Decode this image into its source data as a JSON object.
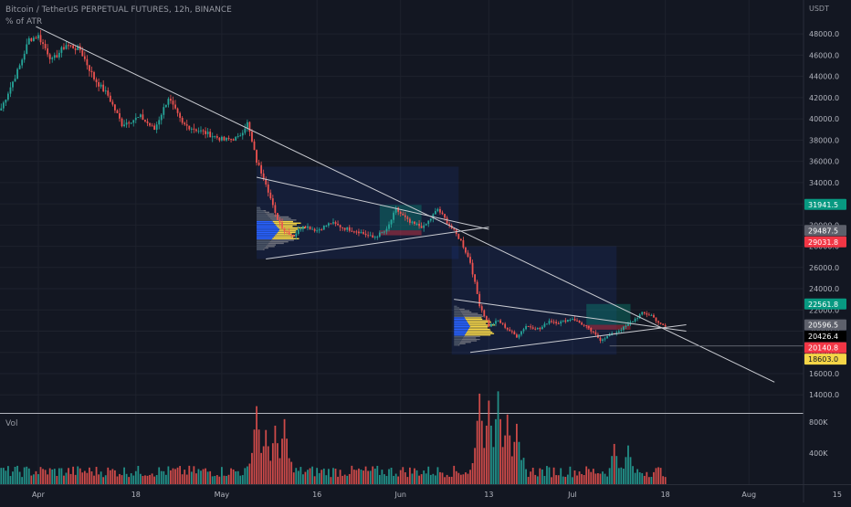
{
  "header": {
    "title": "Bitcoin / TetherUS PERPETUAL FUTURES, 12h, BINANCE",
    "indicator": "% of ATR",
    "currency": "USDT",
    "volume_label": "Vol"
  },
  "colors": {
    "background": "#131722",
    "up": "#26a69a",
    "down": "#ef5350",
    "grid": "#1e222d",
    "axis_text": "#b2b5be",
    "trendline": "#c9cbd1",
    "profile_blue": "#2962ff",
    "profile_yellow": "#f5d547"
  },
  "chart_data": {
    "type": "candlestick",
    "y_axis": {
      "min": 12300,
      "max": 51200,
      "ticks": [
        14000,
        16000,
        18000,
        20000,
        22000,
        24000,
        26000,
        28000,
        30000,
        32000,
        34000,
        36000,
        38000,
        40000,
        42000,
        44000,
        46000,
        48000
      ],
      "tick_labels": [
        "14000.0",
        "16000.0",
        "18000.0",
        "20000.0",
        "22000.0",
        "24000.0",
        "26000.0",
        "28000.0",
        "30000.0",
        "32000.0",
        "34000.0",
        "36000.0",
        "38000.0",
        "40000.0",
        "42000.0",
        "44000.0",
        "46000.0",
        "48000.0"
      ]
    },
    "x_axis": {
      "labels": [
        "Apr",
        "18",
        "May",
        "16",
        "Jun",
        "13",
        "Jul",
        "18",
        "Aug",
        "15"
      ],
      "bar_index": [
        16,
        58,
        95,
        136,
        172,
        210,
        246,
        286,
        322,
        360
      ]
    },
    "price_tags": [
      {
        "label": "31941.5",
        "value": 31941.5,
        "color": "#089981"
      },
      {
        "label": "29487.5",
        "value": 29487.5,
        "color": "#5d606b"
      },
      {
        "label": "29031.8",
        "value": 29031.8,
        "color": "#f23645"
      },
      {
        "label": "22561.8",
        "value": 22561.8,
        "color": "#089981"
      },
      {
        "label": "20596.5",
        "value": 20596.5,
        "color": "#5d606b"
      },
      {
        "label": "20426.4",
        "value": 20426.4,
        "color": "#000000"
      },
      {
        "label": "20140.8",
        "value": 20140.8,
        "color": "#f23645"
      },
      {
        "label": "18603.0",
        "value": 18603.0,
        "color": "#f5d547"
      }
    ],
    "volume_axis": {
      "ticks": [
        400000,
        800000
      ],
      "tick_labels": [
        "400K",
        "800K"
      ],
      "max": 850000
    },
    "keypoints": [
      {
        "i": 0,
        "p": 41000
      },
      {
        "i": 8,
        "p": 45000
      },
      {
        "i": 12,
        "p": 47500
      },
      {
        "i": 16,
        "p": 47800
      },
      {
        "i": 22,
        "p": 45500
      },
      {
        "i": 28,
        "p": 47000
      },
      {
        "i": 34,
        "p": 46500
      },
      {
        "i": 40,
        "p": 43800
      },
      {
        "i": 46,
        "p": 42200
      },
      {
        "i": 52,
        "p": 39500
      },
      {
        "i": 60,
        "p": 40200
      },
      {
        "i": 66,
        "p": 39000
      },
      {
        "i": 72,
        "p": 42000
      },
      {
        "i": 78,
        "p": 39500
      },
      {
        "i": 84,
        "p": 39000
      },
      {
        "i": 90,
        "p": 38500
      },
      {
        "i": 96,
        "p": 38000
      },
      {
        "i": 102,
        "p": 38200
      },
      {
        "i": 106,
        "p": 39600
      },
      {
        "i": 110,
        "p": 36000
      },
      {
        "i": 114,
        "p": 34000
      },
      {
        "i": 118,
        "p": 31000
      },
      {
        "i": 122,
        "p": 29500
      },
      {
        "i": 126,
        "p": 29000
      },
      {
        "i": 130,
        "p": 30000
      },
      {
        "i": 136,
        "p": 29500
      },
      {
        "i": 142,
        "p": 30200
      },
      {
        "i": 148,
        "p": 29700
      },
      {
        "i": 154,
        "p": 29400
      },
      {
        "i": 160,
        "p": 28800
      },
      {
        "i": 166,
        "p": 29500
      },
      {
        "i": 170,
        "p": 31500
      },
      {
        "i": 176,
        "p": 30200
      },
      {
        "i": 182,
        "p": 29800
      },
      {
        "i": 188,
        "p": 31500
      },
      {
        "i": 192,
        "p": 30300
      },
      {
        "i": 198,
        "p": 28500
      },
      {
        "i": 202,
        "p": 26500
      },
      {
        "i": 206,
        "p": 22500
      },
      {
        "i": 210,
        "p": 20500
      },
      {
        "i": 214,
        "p": 21000
      },
      {
        "i": 218,
        "p": 20200
      },
      {
        "i": 222,
        "p": 19500
      },
      {
        "i": 226,
        "p": 20500
      },
      {
        "i": 232,
        "p": 20200
      },
      {
        "i": 236,
        "p": 21000
      },
      {
        "i": 240,
        "p": 20800
      },
      {
        "i": 246,
        "p": 21200
      },
      {
        "i": 252,
        "p": 20400
      },
      {
        "i": 258,
        "p": 19200
      },
      {
        "i": 264,
        "p": 19800
      },
      {
        "i": 270,
        "p": 20600
      },
      {
        "i": 276,
        "p": 21700
      },
      {
        "i": 280,
        "p": 21500
      },
      {
        "i": 284,
        "p": 20600
      },
      {
        "i": 286,
        "p": 20426
      }
    ],
    "volume_spikes": [
      {
        "i": 110,
        "v": 720000
      },
      {
        "i": 114,
        "v": 500000
      },
      {
        "i": 118,
        "v": 540000
      },
      {
        "i": 122,
        "v": 600000
      },
      {
        "i": 206,
        "v": 780000
      },
      {
        "i": 210,
        "v": 720000
      },
      {
        "i": 214,
        "v": 800000
      },
      {
        "i": 218,
        "v": 600000
      },
      {
        "i": 222,
        "v": 520000
      },
      {
        "i": 264,
        "v": 520000
      },
      {
        "i": 270,
        "v": 500000
      }
    ],
    "trendlines": [
      {
        "from": {
          "i": 15,
          "p": 48700
        },
        "to": {
          "i": 333,
          "p": 15200
        }
      },
      {
        "from": {
          "i": 110,
          "p": 34500
        },
        "to": {
          "i": 210,
          "p": 29600
        }
      },
      {
        "from": {
          "i": 114,
          "p": 26800
        },
        "to": {
          "i": 210,
          "p": 29800
        }
      },
      {
        "from": {
          "i": 195,
          "p": 23000
        },
        "to": {
          "i": 295,
          "p": 20000
        }
      },
      {
        "from": {
          "i": 202,
          "p": 18000
        },
        "to": {
          "i": 295,
          "p": 20600
        }
      }
    ],
    "horizontal_line": {
      "p": 18603,
      "from_i": 262
    },
    "boxes": [
      {
        "from_i": 110,
        "to_i": 197,
        "p_top": 35500,
        "p_bottom": 26800,
        "color": "rgba(41,98,255,0.10)"
      },
      {
        "from_i": 163,
        "to_i": 181,
        "p_top": 31900,
        "p_bottom": 29500,
        "color": "rgba(8,153,129,0.35)"
      },
      {
        "from_i": 163,
        "to_i": 181,
        "p_top": 29500,
        "p_bottom": 29030,
        "color": "rgba(242,54,69,0.40)"
      },
      {
        "from_i": 194,
        "to_i": 265,
        "p_top": 28000,
        "p_bottom": 17800,
        "color": "rgba(41,98,255,0.10)"
      },
      {
        "from_i": 252,
        "to_i": 271,
        "p_top": 22560,
        "p_bottom": 20600,
        "color": "rgba(8,153,129,0.35)"
      },
      {
        "from_i": 252,
        "to_i": 271,
        "p_top": 20600,
        "p_bottom": 20140,
        "color": "rgba(242,54,69,0.40)"
      }
    ],
    "profiles": [
      {
        "start_i": 110,
        "p_center": 29600,
        "p_range": [
          27600,
          31700
        ],
        "width_bars": 22,
        "poc_width_bars": 10
      },
      {
        "start_i": 195,
        "p_center": 20500,
        "p_range": [
          18600,
          22400
        ],
        "width_bars": 20,
        "poc_width_bars": 7
      }
    ]
  }
}
